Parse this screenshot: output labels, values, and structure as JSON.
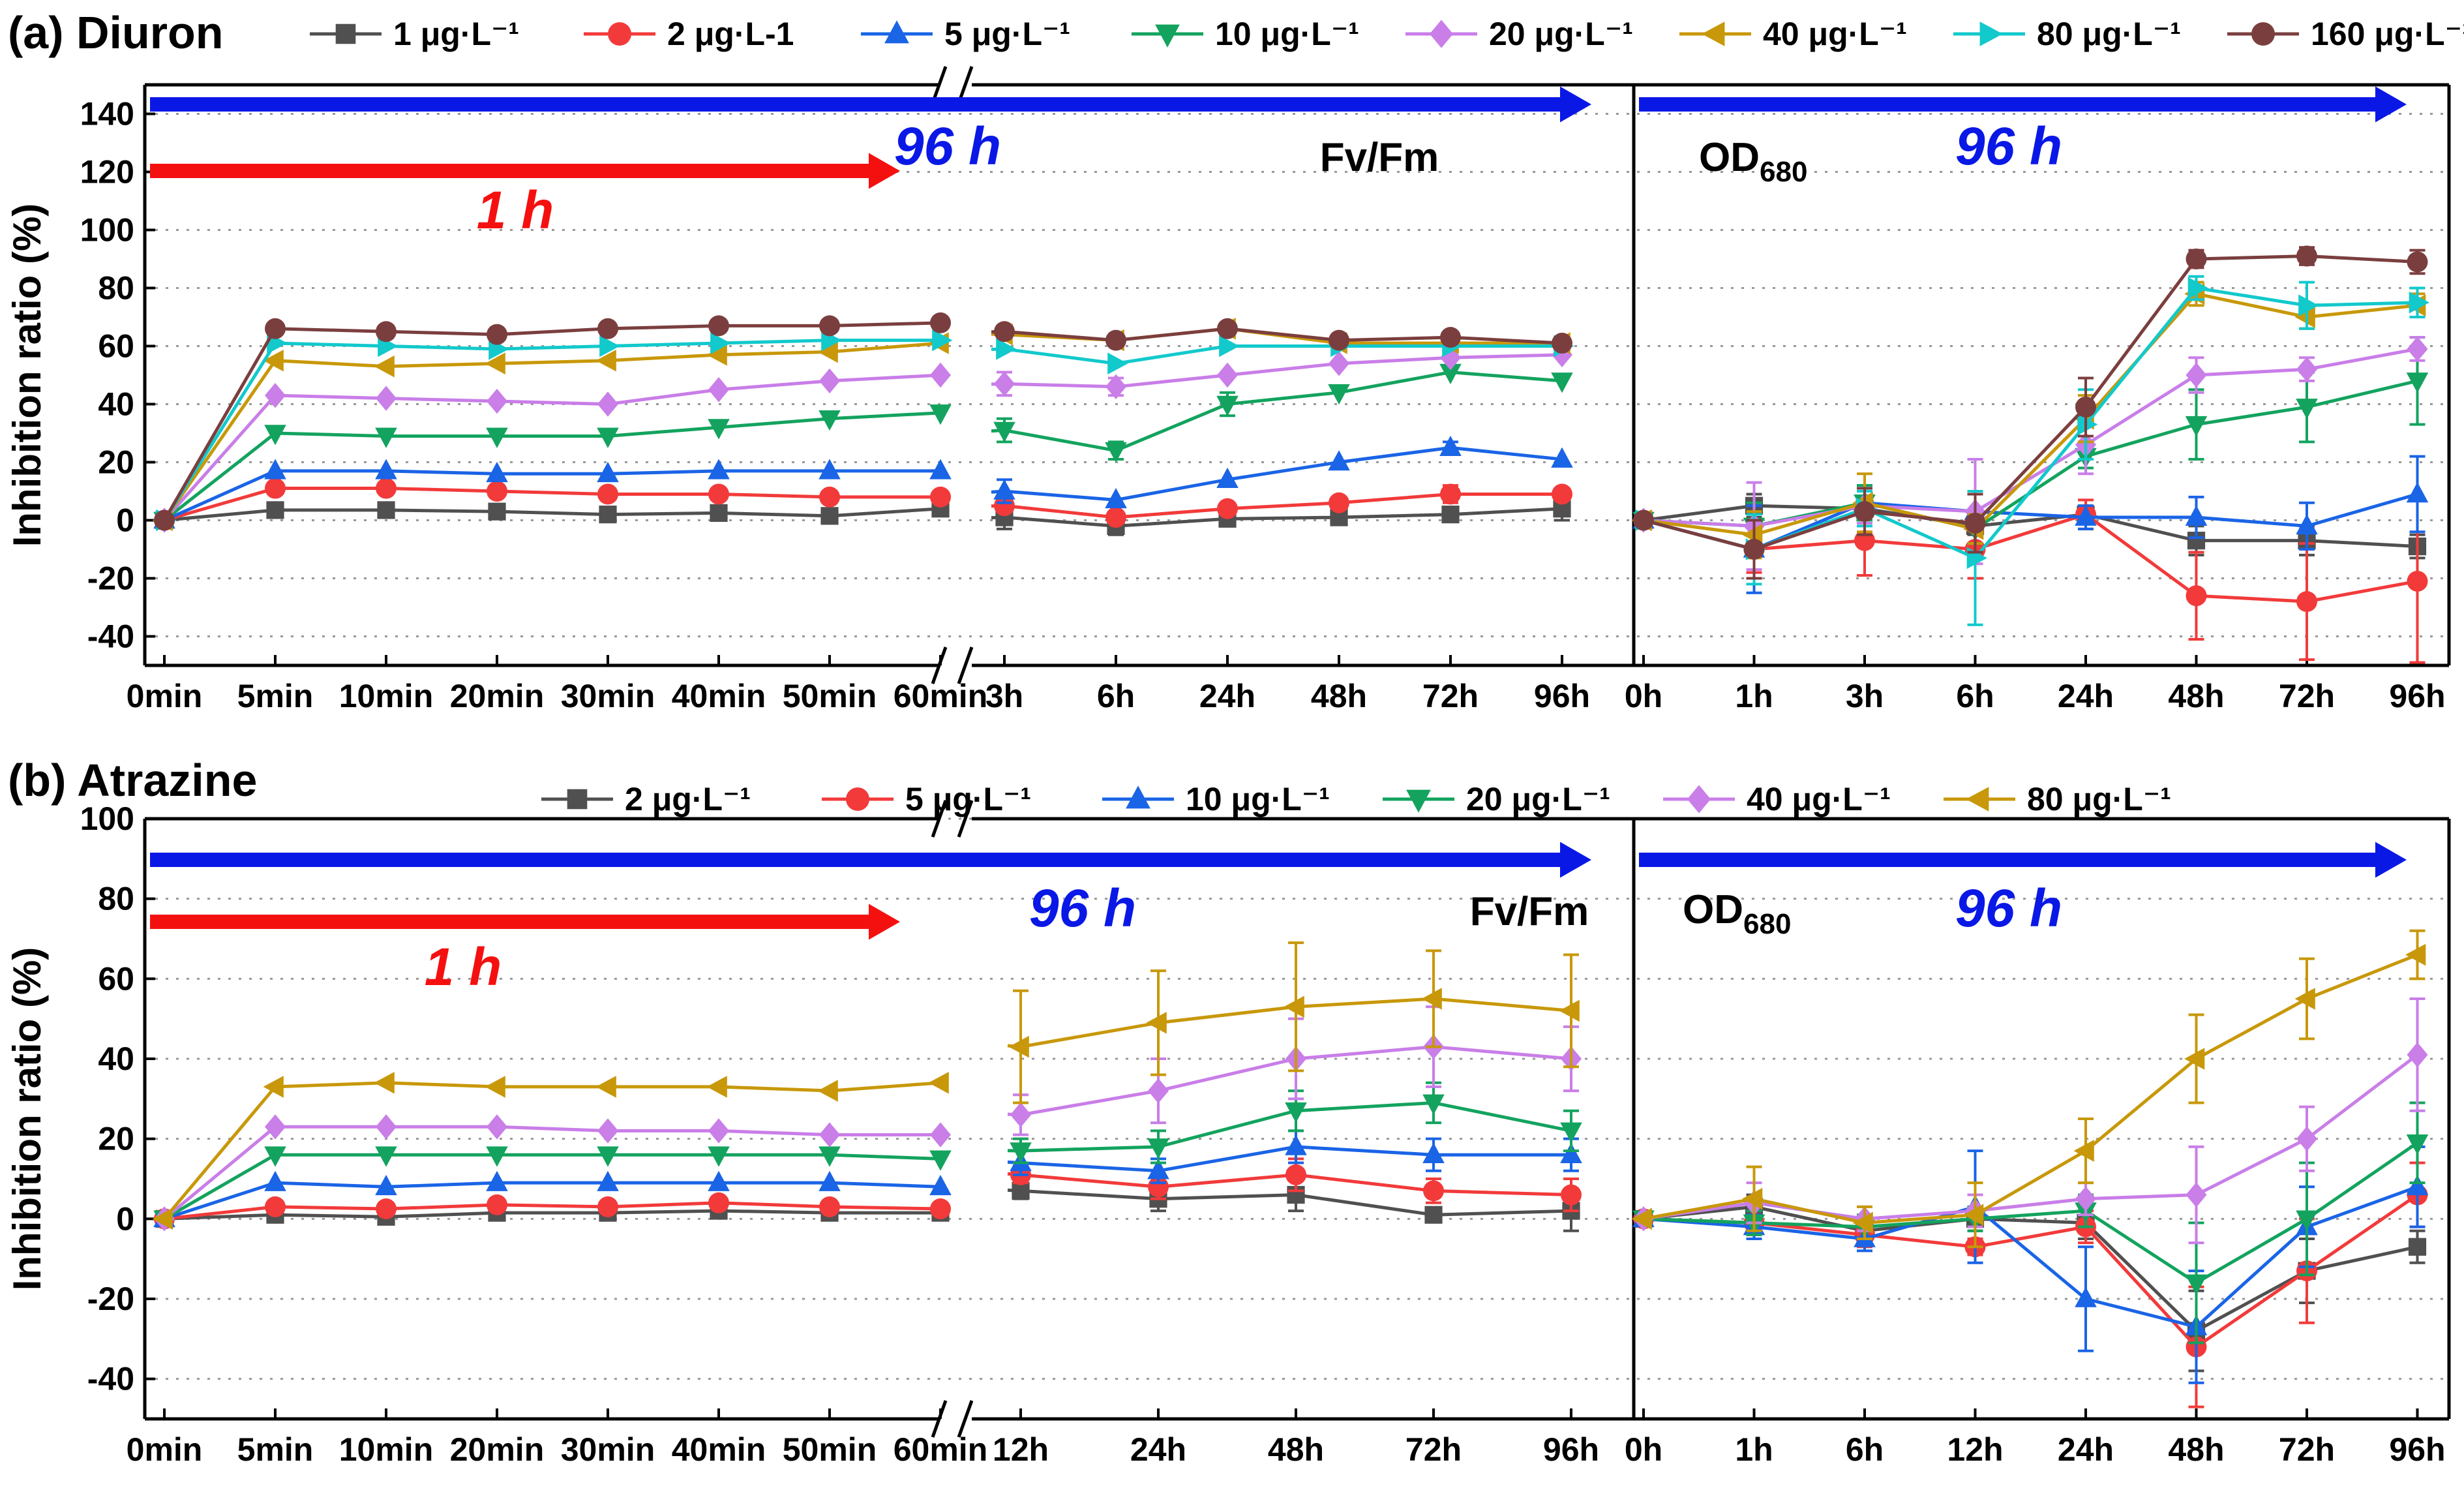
{
  "colors": {
    "s1": "#505050",
    "s2": "#f23a3a",
    "s3": "#1a64e6",
    "s4": "#13a35e",
    "s5": "#c97ee8",
    "s6": "#c8980a",
    "s7": "#12c9cc",
    "s8": "#7b3e3e",
    "arrow_blue": "#0a18e6",
    "arrow_red": "#f51010",
    "grid": "#999999"
  },
  "chart_data": [
    {
      "type": "line",
      "panel_title": "(a) Diuron",
      "ylabel": "Inhibition ratio (%)",
      "ylim": [
        -50,
        150
      ],
      "yticks": [
        "140",
        "120",
        "100",
        "80",
        "60",
        "40",
        "20",
        "0",
        "-20",
        "-40"
      ],
      "yvals": [
        140,
        120,
        100,
        80,
        60,
        40,
        20,
        0,
        -20,
        -40
      ],
      "grid": true,
      "legend_position": "top",
      "legend": [
        "1 μg·L⁻¹",
        "2 μg·L-1",
        "5 μg·L⁻¹",
        "10 μg·L⁻¹",
        "20 μg·L⁻¹",
        "40 μg·L⁻¹",
        "80 μg·L⁻¹",
        "160 μg·L⁻¹"
      ],
      "annotations": {
        "arrow_96h_left": "96 h",
        "arrow_1h": "1 h",
        "metric_left": "Fv/Fm",
        "arrow_96h_right": "96 h",
        "metric_right_base": "OD",
        "metric_right_sub": "680"
      },
      "fvfm": {
        "x_short": [
          "0min",
          "5min",
          "10min",
          "20min",
          "30min",
          "40min",
          "50min",
          "60min"
        ],
        "x_long": [
          "3h",
          "6h",
          "24h",
          "48h",
          "72h",
          "96h"
        ],
        "series": [
          {
            "name": "1 μg·L⁻¹",
            "short": [
              0,
              3.5,
              3.5,
              3,
              2,
              2.5,
              1.5,
              4
            ],
            "long": [
              1,
              -2,
              0.5,
              1,
              2,
              4
            ],
            "err_long": [
              4,
              3,
              0,
              0,
              0,
              4
            ]
          },
          {
            "name": "2 μg·L-1",
            "short": [
              0,
              11,
              11,
              10,
              9,
              9,
              8,
              8
            ],
            "long": [
              5,
              1,
              4,
              6,
              9,
              9
            ],
            "err_long": [
              0,
              0,
              0,
              0,
              3,
              0
            ]
          },
          {
            "name": "5 μg·L⁻¹",
            "short": [
              0,
              17,
              17,
              16,
              16,
              17,
              17,
              17
            ],
            "long": [
              10,
              7,
              14,
              20,
              25,
              21
            ],
            "err_long": [
              4,
              0,
              0,
              0,
              2,
              0
            ]
          },
          {
            "name": "10 μg·L⁻¹",
            "short": [
              0,
              30,
              29,
              29,
              29,
              32,
              35,
              37
            ],
            "long": [
              31,
              24,
              40,
              44,
              51,
              48
            ],
            "err_long": [
              4,
              3,
              4,
              0,
              0,
              0
            ]
          },
          {
            "name": "20 μg·L⁻¹",
            "short": [
              0,
              43,
              42,
              41,
              40,
              45,
              48,
              50
            ],
            "long": [
              47,
              46,
              50,
              54,
              56,
              57
            ],
            "err_long": [
              4,
              3,
              0,
              0,
              0,
              0
            ]
          },
          {
            "name": "40 μg·L⁻¹",
            "short": [
              0,
              55,
              53,
              54,
              55,
              57,
              58,
              61
            ],
            "long": [
              64,
              62,
              66,
              61,
              61,
              61
            ],
            "err_long": [
              0,
              0,
              0,
              0,
              0,
              0
            ]
          },
          {
            "name": "80 μg·L⁻¹",
            "short": [
              0,
              61,
              60,
              59,
              60,
              61,
              62,
              62
            ],
            "long": [
              59,
              54,
              60,
              60,
              60,
              60
            ],
            "err_long": [
              0,
              0,
              0,
              0,
              0,
              0
            ]
          },
          {
            "name": "160 μg·L⁻¹",
            "short": [
              0,
              66,
              65,
              64,
              66,
              67,
              67,
              68
            ],
            "long": [
              65,
              62,
              66,
              62,
              63,
              61
            ],
            "err_long": [
              0,
              0,
              0,
              0,
              0,
              0
            ]
          }
        ]
      },
      "od": {
        "x": [
          "0h",
          "1h",
          "3h",
          "6h",
          "24h",
          "48h",
          "72h",
          "96h"
        ],
        "series": [
          {
            "name": "1 μg·L⁻¹",
            "values": [
              0,
              5,
              4,
              -2,
              2,
              -7,
              -7,
              -9
            ],
            "errors": [
              0,
              4,
              4,
              3,
              3,
              5,
              5,
              4
            ]
          },
          {
            "name": "2 μg·L-1",
            "values": [
              0,
              -10,
              -7,
              -10,
              2,
              -26,
              -28,
              -21
            ],
            "errors": [
              0,
              8,
              12,
              10,
              5,
              15,
              20,
              28
            ]
          },
          {
            "name": "5 μg·L⁻¹",
            "values": [
              0,
              -10,
              6,
              3,
              1,
              1,
              -2,
              9
            ],
            "errors": [
              0,
              15,
              6,
              6,
              4,
              7,
              8,
              13
            ]
          },
          {
            "name": "10 μg·L⁻¹",
            "values": [
              0,
              -2,
              6,
              -3,
              22,
              33,
              39,
              48
            ],
            "errors": [
              0,
              8,
              6,
              5,
              4,
              12,
              12,
              15
            ]
          },
          {
            "name": "20 μg·L⁻¹",
            "values": [
              0,
              -2,
              5,
              3,
              26,
              50,
              52,
              59
            ],
            "errors": [
              0,
              15,
              6,
              18,
              10,
              6,
              4,
              4
            ]
          },
          {
            "name": "40 μg·L⁻¹",
            "values": [
              0,
              -5,
              6,
              -3,
              35,
              78,
              70,
              74
            ],
            "errors": [
              0,
              8,
              10,
              5,
              8,
              4,
              4,
              4
            ]
          },
          {
            "name": "80 μg·L⁻¹",
            "values": [
              0,
              -10,
              4,
              -13,
              33,
              80,
              74,
              75
            ],
            "errors": [
              0,
              12,
              6,
              23,
              12,
              4,
              8,
              5
            ]
          },
          {
            "name": "160 μg·L⁻¹",
            "values": [
              0,
              -10,
              3,
              -1,
              39,
              90,
              91,
              89
            ],
            "errors": [
              0,
              10,
              8,
              10,
              10,
              3,
              3,
              4
            ]
          }
        ]
      }
    },
    {
      "type": "line",
      "panel_title": "(b) Atrazine",
      "ylabel": "Inhibition ratio (%)",
      "ylim": [
        -50,
        100
      ],
      "yticks": [
        "100",
        "80",
        "60",
        "40",
        "20",
        "0",
        "-20",
        "-40"
      ],
      "yvals": [
        100,
        80,
        60,
        40,
        20,
        0,
        -20,
        -40
      ],
      "grid": true,
      "legend_position": "top",
      "legend": [
        "2 μg·L⁻¹",
        "5 μg·L⁻¹",
        "10 μg·L⁻¹",
        "20 μg·L⁻¹",
        "40 μg·L⁻¹",
        "80 μg·L⁻¹"
      ],
      "annotations": {
        "arrow_96h_left": "96 h",
        "arrow_1h": "1 h",
        "metric_left": "Fv/Fm",
        "arrow_96h_right": "96 h",
        "metric_right_base": "OD",
        "metric_right_sub": "680"
      },
      "fvfm": {
        "x_short": [
          "0min",
          "5min",
          "10min",
          "20min",
          "30min",
          "40min",
          "50min",
          "60min"
        ],
        "x_long": [
          "12h",
          "24h",
          "48h",
          "72h",
          "96h"
        ],
        "series": [
          {
            "name": "2 μg·L⁻¹",
            "short": [
              0,
              1,
              0.5,
              1.5,
              1.5,
              2,
              1.5,
              1.5
            ],
            "long": [
              7,
              5,
              6,
              1,
              2
            ],
            "err_long": [
              2,
              3,
              4,
              0,
              5
            ]
          },
          {
            "name": "5 μg·L⁻¹",
            "short": [
              0,
              3,
              2.5,
              3.5,
              3,
              4,
              3,
              2.5
            ],
            "long": [
              11,
              8,
              11,
              7,
              6
            ],
            "err_long": [
              2,
              3,
              4,
              3,
              4
            ]
          },
          {
            "name": "10 μg·L⁻¹",
            "short": [
              0,
              9,
              8,
              9,
              9,
              9,
              9,
              8
            ],
            "long": [
              14,
              12,
              18,
              16,
              16
            ],
            "err_long": [
              3,
              3,
              4,
              4,
              4
            ]
          },
          {
            "name": "20 μg·L⁻¹",
            "short": [
              0,
              16,
              16,
              16,
              16,
              16,
              16,
              15
            ],
            "long": [
              17,
              18,
              27,
              29,
              22
            ],
            "err_long": [
              3,
              4,
              5,
              5,
              5
            ]
          },
          {
            "name": "40 μg·L⁻¹",
            "short": [
              0,
              23,
              23,
              23,
              22,
              22,
              21,
              21
            ],
            "long": [
              26,
              32,
              40,
              43,
              40
            ],
            "err_long": [
              5,
              8,
              10,
              10,
              8
            ]
          },
          {
            "name": "80 μg·L⁻¹",
            "short": [
              0,
              33,
              34,
              33,
              33,
              33,
              32,
              34
            ],
            "long": [
              43,
              49,
              53,
              55,
              52
            ],
            "err_long": [
              14,
              13,
              16,
              12,
              14
            ]
          }
        ]
      },
      "od": {
        "x": [
          "0h",
          "1h",
          "6h",
          "12h",
          "24h",
          "48h",
          "72h",
          "96h"
        ],
        "series": [
          {
            "name": "2 μg·L⁻¹",
            "values": [
              0,
              3,
              -3,
              0,
              -1,
              -28,
              -13,
              -7
            ],
            "errors": [
              0,
              3,
              3,
              3,
              4,
              10,
              8,
              4
            ]
          },
          {
            "name": "5 μg·L⁻¹",
            "values": [
              0,
              -1,
              -4,
              -7,
              -2,
              -32,
              -13,
              6
            ],
            "errors": [
              0,
              3,
              3,
              2,
              4,
              15,
              13,
              8
            ]
          },
          {
            "name": "10 μg·L⁻¹",
            "values": [
              0,
              -2,
              -5,
              3,
              -20,
              -27,
              -2,
              8
            ],
            "errors": [
              0,
              3,
              3,
              14,
              13,
              14,
              10,
              10
            ]
          },
          {
            "name": "20 μg·L⁻¹",
            "values": [
              0,
              -1,
              -2,
              0,
              2,
              -16,
              0,
              19
            ],
            "errors": [
              0,
              3,
              3,
              3,
              4,
              15,
              14,
              10
            ]
          },
          {
            "name": "40 μg·L⁻¹",
            "values": [
              0,
              4,
              0,
              2,
              5,
              6,
              20,
              41
            ],
            "errors": [
              0,
              5,
              3,
              4,
              4,
              12,
              8,
              14
            ]
          },
          {
            "name": "80 μg·L⁻¹",
            "values": [
              0,
              5,
              -1,
              1,
              17,
              40,
              55,
              66
            ],
            "errors": [
              0,
              8,
              4,
              8,
              8,
              11,
              10,
              6
            ]
          }
        ]
      }
    }
  ]
}
